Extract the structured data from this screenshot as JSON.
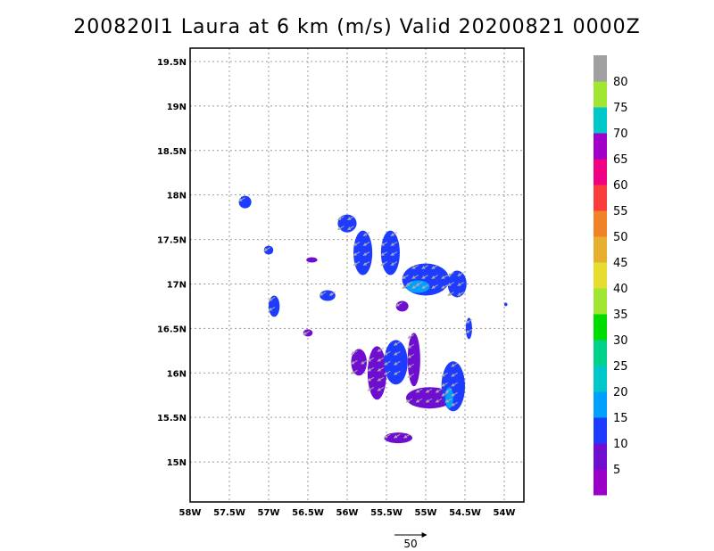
{
  "title": "200820I1 Laura at 6 km (m/s) Valid 20200821 0000Z",
  "map": {
    "lon_range": [
      -58,
      -53.75
    ],
    "lat_range": [
      14.55,
      19.65
    ],
    "lon_ticks": [
      {
        "value": -58,
        "label": "58W"
      },
      {
        "value": -57.5,
        "label": "57.5W"
      },
      {
        "value": -57,
        "label": "57W"
      },
      {
        "value": -56.5,
        "label": "56.5W"
      },
      {
        "value": -56,
        "label": "56W"
      },
      {
        "value": -55.5,
        "label": "55.5W"
      },
      {
        "value": -55,
        "label": "55W"
      },
      {
        "value": -54.5,
        "label": "54.5W"
      },
      {
        "value": -54,
        "label": "54W"
      }
    ],
    "lat_ticks": [
      {
        "value": 15,
        "label": "15N"
      },
      {
        "value": 15.5,
        "label": "15.5N"
      },
      {
        "value": 16,
        "label": "16N"
      },
      {
        "value": 16.5,
        "label": "16.5N"
      },
      {
        "value": 17,
        "label": "17N"
      },
      {
        "value": 17.5,
        "label": "17.5N"
      },
      {
        "value": 18,
        "label": "18N"
      },
      {
        "value": 18.5,
        "label": "18.5N"
      },
      {
        "value": 19,
        "label": "19N"
      },
      {
        "value": 19.5,
        "label": "19.5N"
      }
    ]
  },
  "colorbar": {
    "levels": [
      {
        "max": 5,
        "color": "#9b00c8",
        "label": "5"
      },
      {
        "max": 10,
        "color": "#6f0ed0",
        "label": "10"
      },
      {
        "max": 15,
        "color": "#1e3cff",
        "label": "15"
      },
      {
        "max": 20,
        "color": "#00a0ff",
        "label": "20"
      },
      {
        "max": 25,
        "color": "#00c8c8",
        "label": "25"
      },
      {
        "max": 30,
        "color": "#00d28c",
        "label": "30"
      },
      {
        "max": 35,
        "color": "#00dc00",
        "label": "35"
      },
      {
        "max": 40,
        "color": "#a0e632",
        "label": "40"
      },
      {
        "max": 45,
        "color": "#e6dc32",
        "label": "45"
      },
      {
        "max": 50,
        "color": "#e6af2d",
        "label": "50"
      },
      {
        "max": 55,
        "color": "#f08228",
        "label": "55"
      },
      {
        "max": 60,
        "color": "#fa3c3c",
        "label": "60"
      },
      {
        "max": 65,
        "color": "#f00082",
        "label": "65"
      },
      {
        "max": 70,
        "color": "#a000c8",
        "label": "70"
      },
      {
        "max": 75,
        "color": "#00c8c8",
        "label": "75"
      },
      {
        "max": 80,
        "color": "#a0e632",
        "label": "80"
      },
      {
        "max": 85,
        "color": "#a0a0a0",
        "label": ""
      }
    ]
  },
  "reference_vector": {
    "speed": 50,
    "label": "50"
  },
  "wind_regions": [
    {
      "lon": -57.3,
      "lat": 17.92,
      "rlon": 0.08,
      "rlat": 0.07,
      "speed": 12
    },
    {
      "lon": -57.0,
      "lat": 17.38,
      "rlon": 0.06,
      "rlat": 0.05,
      "speed": 12
    },
    {
      "lon": -56.45,
      "lat": 17.27,
      "rlon": 0.07,
      "rlat": 0.03,
      "speed": 6
    },
    {
      "lon": -56.93,
      "lat": 16.75,
      "rlon": 0.07,
      "rlat": 0.12,
      "speed": 12
    },
    {
      "lon": -56.25,
      "lat": 16.87,
      "rlon": 0.1,
      "rlat": 0.06,
      "speed": 12
    },
    {
      "lon": -56.5,
      "lat": 16.45,
      "rlon": 0.06,
      "rlat": 0.04,
      "speed": 6
    },
    {
      "lon": -56.0,
      "lat": 17.68,
      "rlon": 0.12,
      "rlat": 0.1,
      "speed": 12
    },
    {
      "lon": -55.8,
      "lat": 17.35,
      "rlon": 0.12,
      "rlat": 0.25,
      "speed": 12
    },
    {
      "lon": -55.45,
      "lat": 17.35,
      "rlon": 0.12,
      "rlat": 0.25,
      "speed": 12
    },
    {
      "lon": -55.0,
      "lat": 17.05,
      "rlon": 0.3,
      "rlat": 0.18,
      "speed": 14
    },
    {
      "lon": -55.1,
      "lat": 16.97,
      "rlon": 0.15,
      "rlat": 0.07,
      "speed": 18
    },
    {
      "lon": -54.6,
      "lat": 17.0,
      "rlon": 0.12,
      "rlat": 0.15,
      "speed": 12
    },
    {
      "lon": -55.3,
      "lat": 16.75,
      "rlon": 0.08,
      "rlat": 0.06,
      "speed": 6
    },
    {
      "lon": -54.45,
      "lat": 16.5,
      "rlon": 0.04,
      "rlat": 0.12,
      "speed": 12
    },
    {
      "lon": -55.85,
      "lat": 16.12,
      "rlon": 0.1,
      "rlat": 0.15,
      "speed": 6
    },
    {
      "lon": -55.62,
      "lat": 16.0,
      "rlon": 0.12,
      "rlat": 0.3,
      "speed": 6
    },
    {
      "lon": -55.38,
      "lat": 16.12,
      "rlon": 0.15,
      "rlat": 0.25,
      "speed": 12
    },
    {
      "lon": -55.15,
      "lat": 16.15,
      "rlon": 0.08,
      "rlat": 0.3,
      "speed": 6
    },
    {
      "lon": -54.95,
      "lat": 15.72,
      "rlon": 0.3,
      "rlat": 0.12,
      "speed": 6
    },
    {
      "lon": -55.35,
      "lat": 15.27,
      "rlon": 0.18,
      "rlat": 0.06,
      "speed": 6
    },
    {
      "lon": -54.65,
      "lat": 15.85,
      "rlon": 0.15,
      "rlat": 0.28,
      "speed": 14
    },
    {
      "lon": -54.7,
      "lat": 15.72,
      "rlon": 0.05,
      "rlat": 0.12,
      "speed": 18
    },
    {
      "lon": -53.98,
      "lat": 16.77,
      "rlon": 0.02,
      "rlat": 0.02,
      "speed": 12
    }
  ]
}
